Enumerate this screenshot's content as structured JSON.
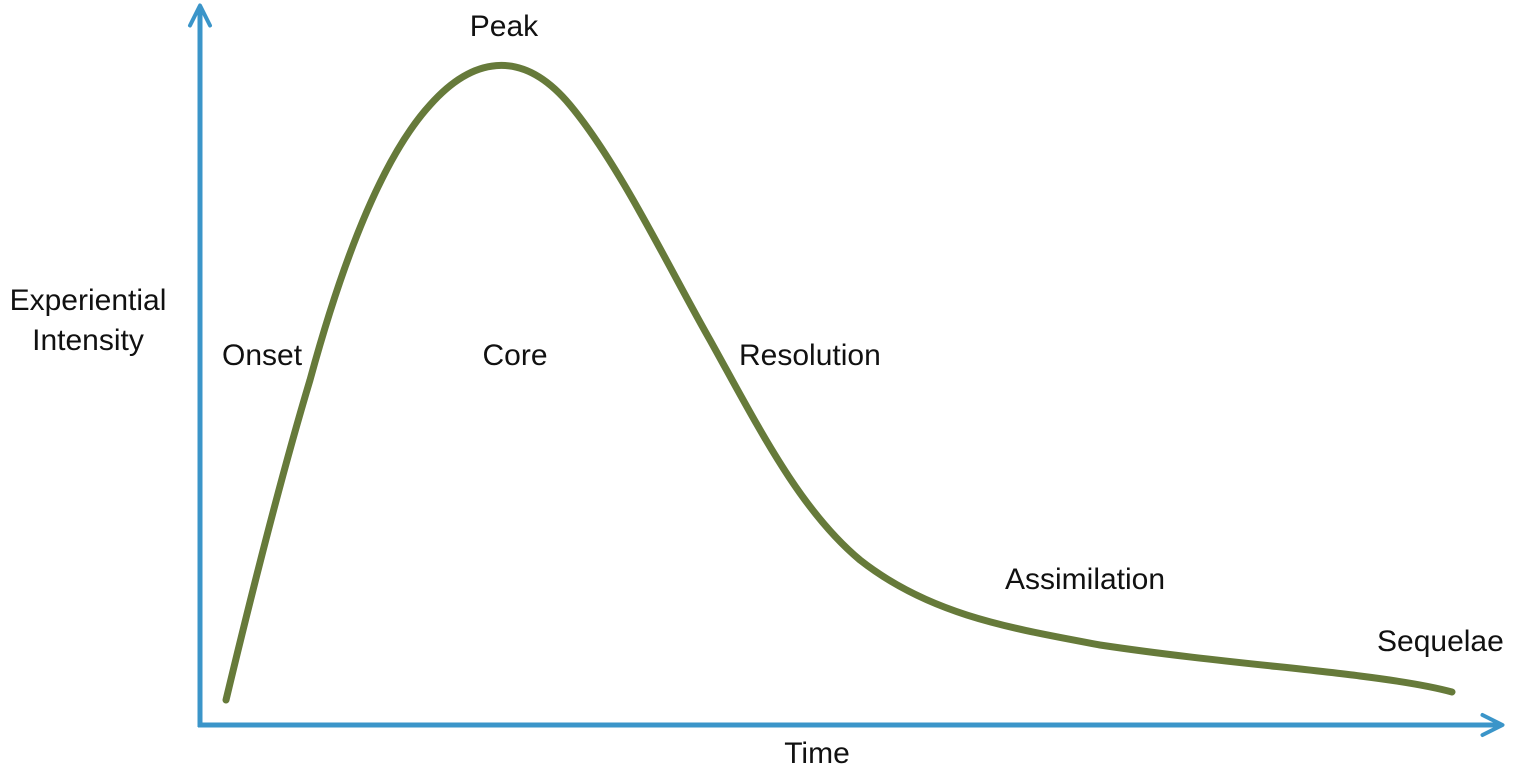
{
  "diagram": {
    "y_axis_label_lines": [
      "Experiential",
      "Intensity"
    ],
    "x_axis_label": "Time",
    "phases": [
      "Onset",
      "Peak",
      "Core",
      "Resolution",
      "Assimilation",
      "Sequelae"
    ]
  }
}
